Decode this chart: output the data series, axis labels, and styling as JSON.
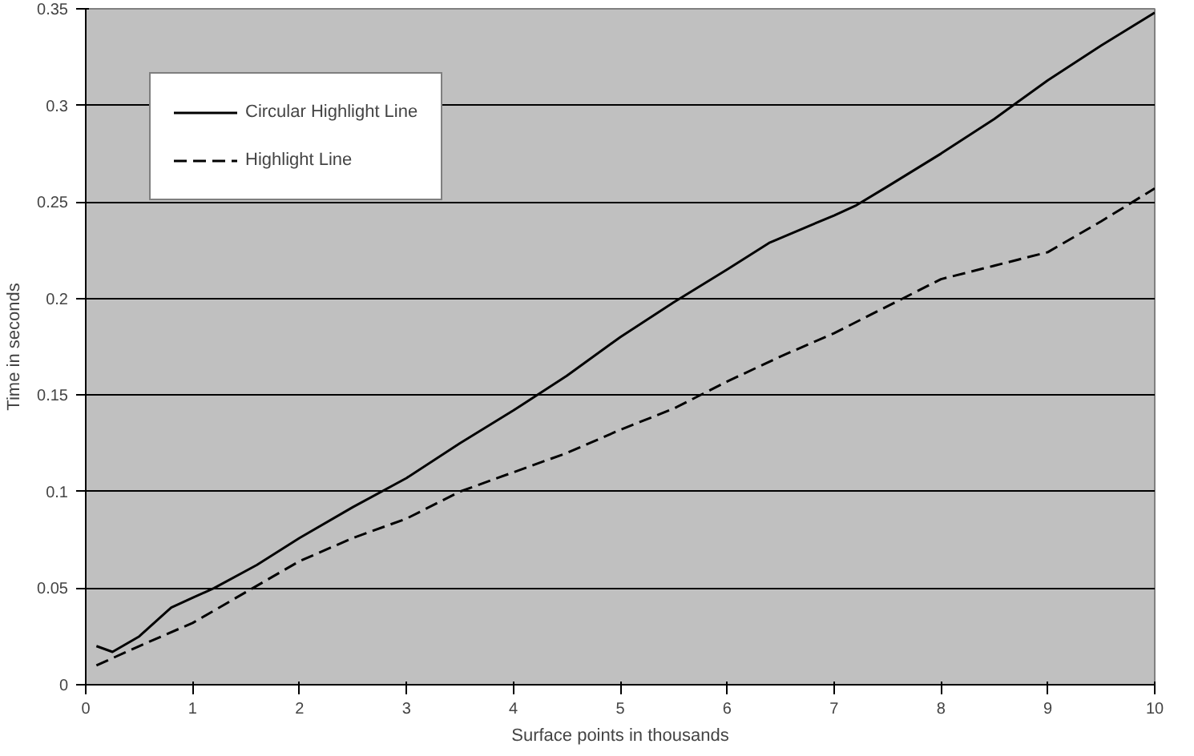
{
  "chart_data": {
    "type": "line",
    "xlabel": "Surface points in thousands",
    "ylabel": "Time in seconds",
    "xlim": [
      0,
      10
    ],
    "ylim": [
      0,
      0.35
    ],
    "xticks": [
      0,
      1,
      2,
      3,
      4,
      5,
      6,
      7,
      8,
      9,
      10
    ],
    "yticks": [
      0,
      0.05,
      0.1,
      0.15,
      0.2,
      0.25,
      0.3,
      0.35
    ],
    "grid": "y",
    "legend": "top left",
    "series": [
      {
        "name": "Circular Highlight Line",
        "color": "#000000",
        "line_style": "solid",
        "x": [
          0.1,
          0.25,
          0.5,
          0.8,
          1,
          1.2,
          1.6,
          2,
          2.5,
          3,
          3.5,
          4,
          4.5,
          5,
          5.5,
          6,
          6.4,
          7,
          7.2,
          7.5,
          8,
          8.5,
          9,
          9.5,
          10
        ],
        "values": [
          0.02,
          0.017,
          0.025,
          0.04,
          0.045,
          0.05,
          0.062,
          0.076,
          0.092,
          0.107,
          0.125,
          0.142,
          0.16,
          0.18,
          0.198,
          0.215,
          0.229,
          0.243,
          0.248,
          0.258,
          0.275,
          0.293,
          0.313,
          0.331,
          0.348
        ]
      },
      {
        "name": "Highlight Line",
        "color": "#000000",
        "line_style": "dashed",
        "x": [
          0.1,
          0.5,
          1,
          1.5,
          2,
          2.5,
          3,
          3.5,
          4,
          4.5,
          5,
          5.5,
          6,
          6.5,
          7,
          7.5,
          8,
          8.5,
          9,
          9.5,
          10
        ],
        "values": [
          0.01,
          0.02,
          0.032,
          0.048,
          0.064,
          0.076,
          0.086,
          0.1,
          0.11,
          0.12,
          0.132,
          0.143,
          0.157,
          0.17,
          0.182,
          0.196,
          0.21,
          0.217,
          0.224,
          0.24,
          0.257
        ]
      }
    ]
  }
}
